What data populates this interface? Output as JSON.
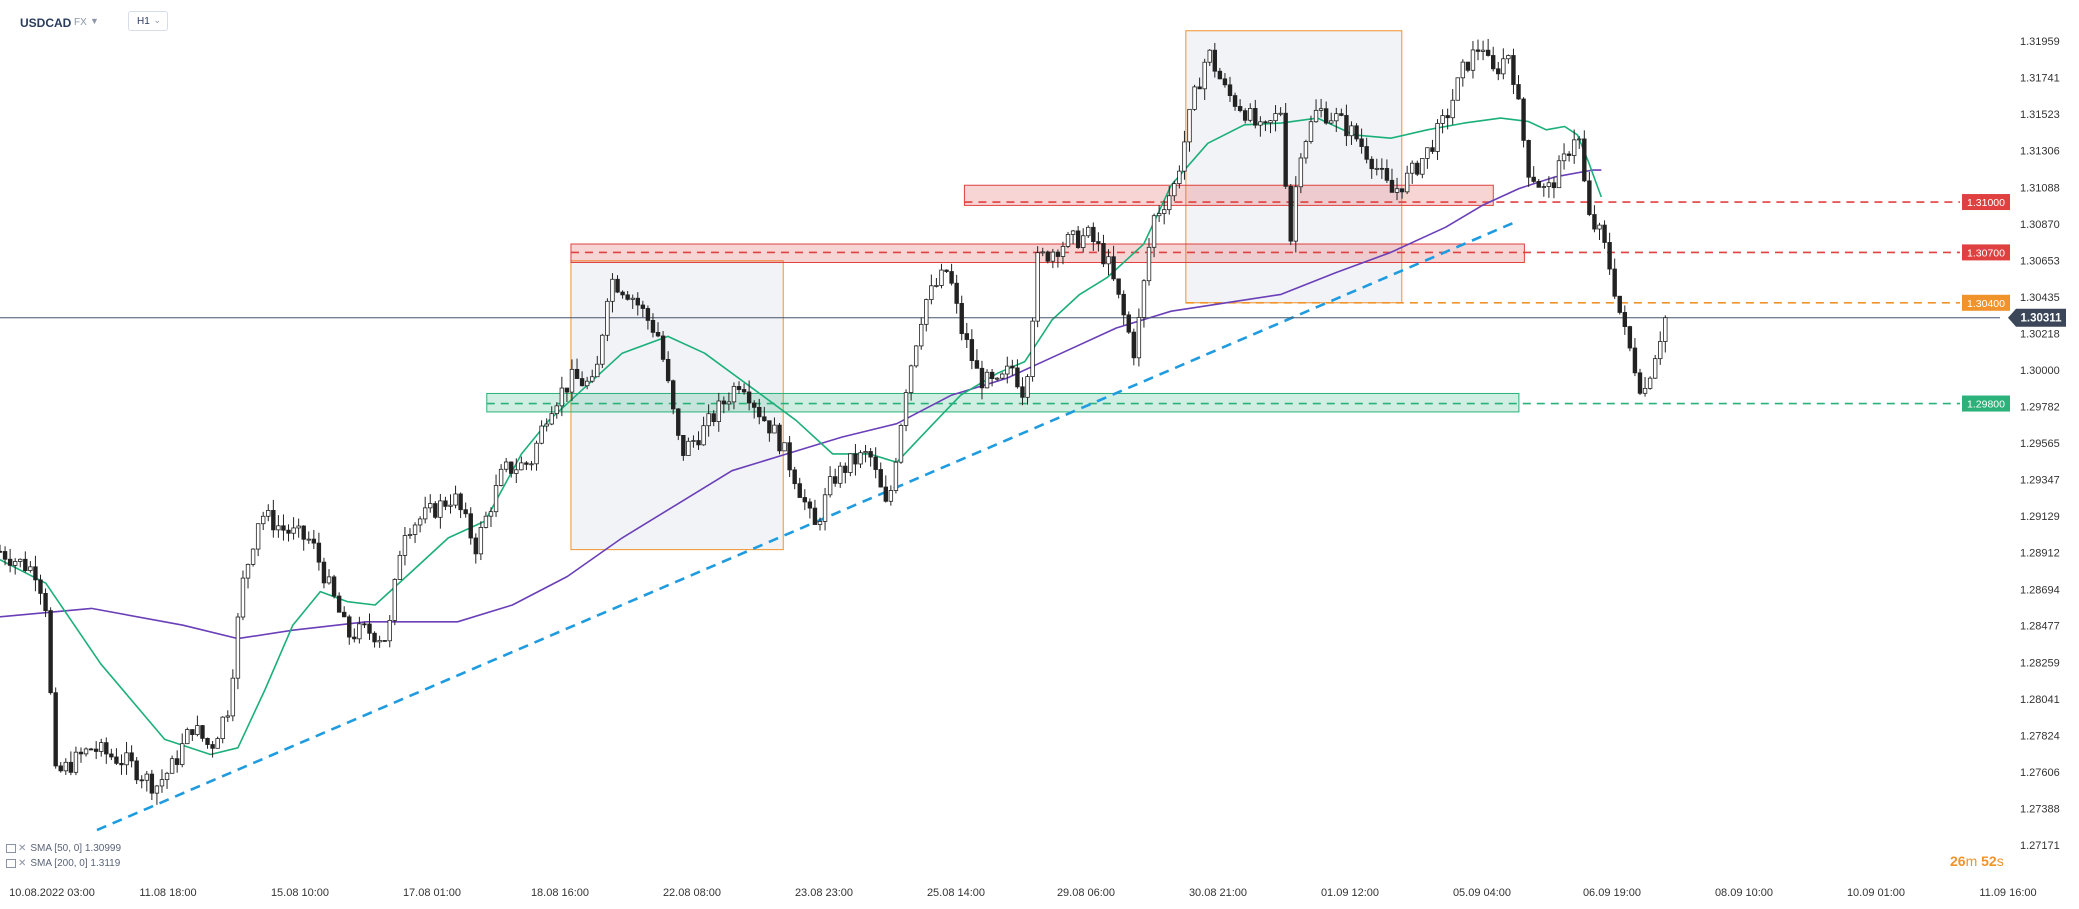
{
  "header": {
    "symbol": "USDCAD",
    "market": "FX",
    "timeframe": "H1"
  },
  "colors": {
    "up": "#ffffff",
    "down": "#222222",
    "sma50": "#1bb07a",
    "sma200": "#6a3fb8",
    "trendline": "#1f9be0",
    "resistance": "#e04040",
    "support": "#2ab27a",
    "pivot": "#f0932a",
    "box": "#f0932a",
    "price_line": "#44556b"
  },
  "legend": {
    "sma50": "SMA [50, 0] 1.30999",
    "sma200": "SMA [200, 0] 1.3119"
  },
  "timer": {
    "minutes": "26",
    "m": "m",
    "seconds": "52",
    "s": "s"
  },
  "chart_data": {
    "type": "candlestick",
    "instrument": "USDCAD",
    "timeframe": "H1",
    "ylim": [
      1.27171,
      1.3207
    ],
    "y_ticks": [
      "1.31959",
      "1.31741",
      "1.31523",
      "1.31306",
      "1.31088",
      "1.30870",
      "1.30653",
      "1.30435",
      "1.30218",
      "1.30000",
      "1.29782",
      "1.29565",
      "1.29347",
      "1.29129",
      "1.28912",
      "1.28694",
      "1.28477",
      "1.28259",
      "1.28041",
      "1.27824",
      "1.27606",
      "1.27388",
      "1.27171"
    ],
    "x_ticks": [
      "10.08.2022  03:00",
      "11.08  18:00",
      "15.08  10:00",
      "17.08  01:00",
      "18.08  16:00",
      "22.08  08:00",
      "23.08  23:00",
      "25.08  14:00",
      "29.08  06:00",
      "30.08  21:00",
      "01.09  12:00",
      "05.09  04:00",
      "06.09  19:00",
      "08.09  10:00",
      "10.09  01:00",
      "11.09  16:00"
    ],
    "current_price": "1.30311",
    "levels": [
      {
        "label": "1.31000",
        "value": 1.31,
        "kind": "resistance"
      },
      {
        "label": "1.30700",
        "value": 1.307,
        "kind": "resistance"
      },
      {
        "label": "1.30400",
        "value": 1.304,
        "kind": "pivot"
      },
      {
        "label": "1.29800",
        "value": 1.298,
        "kind": "support"
      }
    ],
    "zones": [
      {
        "kind": "resistance",
        "from": 1.3098,
        "to": 1.311
      },
      {
        "kind": "resistance",
        "from": 1.3064,
        "to": 1.3075
      },
      {
        "kind": "support",
        "from": 1.2975,
        "to": 1.2986
      }
    ],
    "boxes": [
      {
        "from": 1.2893,
        "to": 1.3065
      },
      {
        "from": 1.304,
        "to": 1.3202
      }
    ],
    "trendline": [
      1.2726,
      1.3089
    ],
    "path": [
      [
        0,
        1.2892
      ],
      [
        0.02,
        1.288
      ],
      [
        0.025,
        1.286
      ],
      [
        0.03,
        1.2758
      ],
      [
        0.05,
        1.2775
      ],
      [
        0.07,
        1.2766
      ],
      [
        0.085,
        1.2752
      ],
      [
        0.095,
        1.2765
      ],
      [
        0.105,
        1.2788
      ],
      [
        0.115,
        1.2775
      ],
      [
        0.125,
        1.28
      ],
      [
        0.132,
        1.287
      ],
      [
        0.142,
        1.2915
      ],
      [
        0.155,
        1.2905
      ],
      [
        0.17,
        1.2898
      ],
      [
        0.183,
        1.2862
      ],
      [
        0.19,
        1.2842
      ],
      [
        0.2,
        1.2845
      ],
      [
        0.212,
        1.284
      ],
      [
        0.22,
        1.2905
      ],
      [
        0.235,
        1.2915
      ],
      [
        0.248,
        1.2925
      ],
      [
        0.26,
        1.2895
      ],
      [
        0.275,
        1.294
      ],
      [
        0.29,
        1.2945
      ],
      [
        0.3,
        1.2978
      ],
      [
        0.313,
        1.2995
      ],
      [
        0.325,
        1.299
      ],
      [
        0.333,
        1.3055
      ],
      [
        0.345,
        1.3045
      ],
      [
        0.36,
        1.302
      ],
      [
        0.372,
        1.295
      ],
      [
        0.385,
        1.2965
      ],
      [
        0.395,
        1.298
      ],
      [
        0.405,
        1.2995
      ],
      [
        0.415,
        1.2975
      ],
      [
        0.425,
        1.296
      ],
      [
        0.435,
        1.2935
      ],
      [
        0.445,
        1.2905
      ],
      [
        0.455,
        1.2935
      ],
      [
        0.465,
        1.2945
      ],
      [
        0.475,
        1.295
      ],
      [
        0.485,
        1.2915
      ],
      [
        0.495,
        1.299
      ],
      [
        0.505,
        1.304
      ],
      [
        0.518,
        1.306
      ],
      [
        0.525,
        1.3025
      ],
      [
        0.535,
        1.2995
      ],
      [
        0.545,
        1.299
      ],
      [
        0.553,
        1.3002
      ],
      [
        0.56,
        1.2985
      ],
      [
        0.567,
        1.3065
      ],
      [
        0.58,
        1.3075
      ],
      [
        0.595,
        1.308
      ],
      [
        0.605,
        1.3065
      ],
      [
        0.62,
        1.301
      ],
      [
        0.63,
        1.309
      ],
      [
        0.642,
        1.311
      ],
      [
        0.652,
        1.316
      ],
      [
        0.66,
        1.319
      ],
      [
        0.67,
        1.3165
      ],
      [
        0.68,
        1.3155
      ],
      [
        0.69,
        1.314
      ],
      [
        0.7,
        1.3155
      ],
      [
        0.705,
        1.3075
      ],
      [
        0.71,
        1.313
      ],
      [
        0.72,
        1.3155
      ],
      [
        0.73,
        1.315
      ],
      [
        0.74,
        1.314
      ],
      [
        0.75,
        1.3125
      ],
      [
        0.76,
        1.3105
      ],
      [
        0.77,
        1.3115
      ],
      [
        0.78,
        1.313
      ],
      [
        0.79,
        1.315
      ],
      [
        0.8,
        1.318
      ],
      [
        0.81,
        1.3195
      ],
      [
        0.815,
        1.3175
      ],
      [
        0.825,
        1.319
      ],
      [
        0.835,
        1.312
      ],
      [
        0.845,
        1.3105
      ],
      [
        0.855,
        1.3125
      ],
      [
        0.862,
        1.3145
      ],
      [
        0.868,
        1.309
      ],
      [
        0.875,
        1.308
      ],
      [
        0.88,
        1.306
      ],
      [
        0.887,
        1.3025
      ],
      [
        0.894,
        1.3
      ],
      [
        0.898,
        1.2985
      ],
      [
        0.903,
        1.3005
      ],
      [
        0.91,
        1.3031
      ]
    ],
    "sma50": [
      [
        0,
        1.2887
      ],
      [
        0.025,
        1.2873
      ],
      [
        0.055,
        1.2825
      ],
      [
        0.09,
        1.278
      ],
      [
        0.115,
        1.2771
      ],
      [
        0.13,
        1.2775
      ],
      [
        0.145,
        1.281
      ],
      [
        0.16,
        1.2848
      ],
      [
        0.175,
        1.2868
      ],
      [
        0.19,
        1.2862
      ],
      [
        0.205,
        1.286
      ],
      [
        0.225,
        1.288
      ],
      [
        0.245,
        1.29
      ],
      [
        0.265,
        1.291
      ],
      [
        0.285,
        1.295
      ],
      [
        0.3,
        1.297
      ],
      [
        0.32,
        1.299
      ],
      [
        0.34,
        1.301
      ],
      [
        0.365,
        1.302
      ],
      [
        0.385,
        1.301
      ],
      [
        0.41,
        1.299
      ],
      [
        0.435,
        1.297
      ],
      [
        0.455,
        1.295
      ],
      [
        0.475,
        1.295
      ],
      [
        0.49,
        1.2945
      ],
      [
        0.51,
        1.2968
      ],
      [
        0.525,
        1.2985
      ],
      [
        0.545,
        1.2998
      ],
      [
        0.56,
        1.3005
      ],
      [
        0.575,
        1.303
      ],
      [
        0.59,
        1.3045
      ],
      [
        0.605,
        1.3055
      ],
      [
        0.625,
        1.3075
      ],
      [
        0.64,
        1.311
      ],
      [
        0.66,
        1.3135
      ],
      [
        0.68,
        1.3146
      ],
      [
        0.7,
        1.3147
      ],
      [
        0.72,
        1.315
      ],
      [
        0.74,
        1.314
      ],
      [
        0.76,
        1.3138
      ],
      [
        0.78,
        1.3143
      ],
      [
        0.8,
        1.3147
      ],
      [
        0.82,
        1.315
      ],
      [
        0.835,
        1.3148
      ],
      [
        0.845,
        1.3143
      ],
      [
        0.855,
        1.3145
      ],
      [
        0.862,
        1.314
      ],
      [
        0.868,
        1.3124
      ],
      [
        0.875,
        1.3103
      ]
    ],
    "sma200": [
      [
        0,
        1.2853
      ],
      [
        0.05,
        1.2858
      ],
      [
        0.1,
        1.2848
      ],
      [
        0.13,
        1.284
      ],
      [
        0.16,
        1.2845
      ],
      [
        0.2,
        1.285
      ],
      [
        0.25,
        1.285
      ],
      [
        0.28,
        1.286
      ],
      [
        0.31,
        1.2877
      ],
      [
        0.34,
        1.29
      ],
      [
        0.37,
        1.292
      ],
      [
        0.4,
        1.294
      ],
      [
        0.43,
        1.295
      ],
      [
        0.46,
        1.296
      ],
      [
        0.49,
        1.2968
      ],
      [
        0.52,
        1.2985
      ],
      [
        0.55,
        1.2995
      ],
      [
        0.58,
        1.301
      ],
      [
        0.61,
        1.3025
      ],
      [
        0.64,
        1.3035
      ],
      [
        0.67,
        1.304
      ],
      [
        0.7,
        1.3045
      ],
      [
        0.73,
        1.3058
      ],
      [
        0.76,
        1.307
      ],
      [
        0.79,
        1.3085
      ],
      [
        0.81,
        1.3098
      ],
      [
        0.83,
        1.3108
      ],
      [
        0.85,
        1.3115
      ],
      [
        0.87,
        1.3119
      ],
      [
        0.875,
        1.3119
      ]
    ]
  }
}
